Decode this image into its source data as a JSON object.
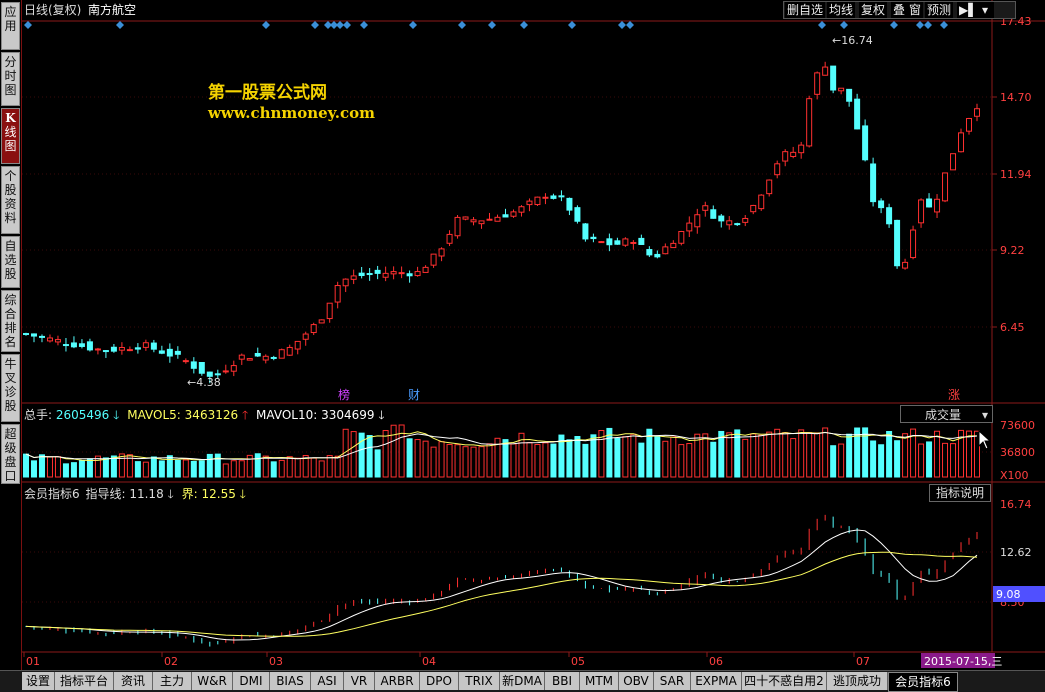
{
  "sidebar": {
    "tabs": [
      {
        "id": "app",
        "chars": [
          "应",
          "用"
        ]
      },
      {
        "id": "timeshare",
        "chars": [
          "分",
          "时",
          "图"
        ]
      },
      {
        "id": "kline",
        "chars": [
          "K",
          "线",
          "图"
        ]
      },
      {
        "id": "stockinfo",
        "chars": [
          "个",
          "股",
          "资",
          "料"
        ]
      },
      {
        "id": "watchlist",
        "chars": [
          "自",
          "选",
          "股"
        ]
      },
      {
        "id": "ranking",
        "chars": [
          "综",
          "合",
          "排",
          "名"
        ]
      },
      {
        "id": "diagnose",
        "chars": [
          "牛",
          "叉",
          "诊",
          "股"
        ]
      },
      {
        "id": "superdisk",
        "chars": [
          "超",
          "级",
          "盘",
          "口"
        ]
      }
    ]
  },
  "header": {
    "period": "日线(复权)",
    "stock_name": "南方航空",
    "buttons": [
      "删自选",
      "均线",
      "复权",
      "叠",
      "窗",
      "预测"
    ]
  },
  "watermark": {
    "line1": "第一股票公式网",
    "line2": "www.chnmoney.com"
  },
  "price_chart": {
    "axis_labels": [
      "17.43",
      "14.70",
      "11.94",
      "9.22",
      "6.45"
    ],
    "high_label": "16.74",
    "low_label": "4.38",
    "markers": [
      {
        "text": "榜",
        "color": "#d040ff"
      },
      {
        "text": "财",
        "color": "#4a9cff"
      },
      {
        "text": "涨",
        "color": "#ff4040"
      }
    ]
  },
  "volume": {
    "label_total": "总手:",
    "value_total": "2605496",
    "label_ma5": "MAVOL5:",
    "value_ma5": "3463126",
    "label_ma10": "MAVOL10:",
    "value_ma10": "3304699",
    "dropdown": "成交量",
    "axis_labels": [
      "73600",
      "36800",
      "X100"
    ]
  },
  "indicator": {
    "name": "会员指标6",
    "guide_label": "指导线:",
    "guide_value": "11.18",
    "bound_label": "界:",
    "bound_value": "12.55",
    "explain_button": "指标说明",
    "axis_labels": [
      "16.74",
      "12.62",
      "8.50"
    ],
    "highlight_value": "9.08",
    "highlight_color": "#5050ff"
  },
  "x_axis": {
    "months": [
      "01",
      "02",
      "03",
      "04",
      "05",
      "06",
      "07"
    ],
    "current_date": "2015-07-15,三"
  },
  "bottom_tabs": [
    "设置",
    "指标平台",
    "资讯",
    "主力",
    "W&R",
    "DMI",
    "BIAS",
    "ASI",
    "VR",
    "ARBR",
    "DPO",
    "TRIX",
    "新DMA",
    "BBI",
    "MTM",
    "OBV",
    "SAR",
    "EXPMA",
    "四十不惑自用2",
    "逃顶成功",
    "会员指标6"
  ],
  "active_bottom_tab": "会员指标6",
  "colors": {
    "up": "#ff3030",
    "down": "#54ffff",
    "frame": "#8b1a1a",
    "ma_white": "#ffffff",
    "ma_yellow": "#ffff60",
    "diamond": "#3a8fd8"
  }
}
